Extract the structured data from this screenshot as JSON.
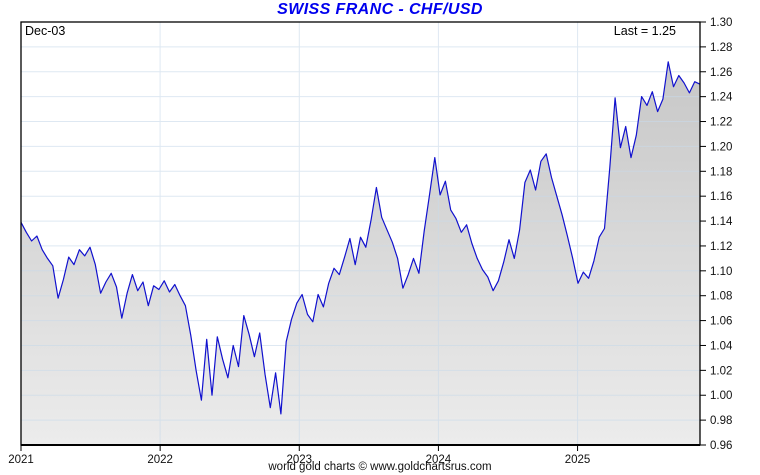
{
  "title": "SWISS FRANC - CHF/USD",
  "annotations": {
    "date_label": "Dec-03",
    "last_label": "Last = 1.25"
  },
  "footer": "world gold charts © www.goldchartsrus.com",
  "colors": {
    "title": "#0000EE",
    "line": "#1111CE",
    "area_top": "#c7c7c7",
    "area_bottom": "#ececec",
    "grid": "#c9daea",
    "axis": "#000000",
    "tick_text": "#111111"
  },
  "chart_data": {
    "type": "line",
    "title": "SWISS FRANC - CHF/USD",
    "series_name": "CHF/USD",
    "xlabel": "",
    "ylabel": "",
    "grid": true,
    "legend": "none",
    "ylim": [
      0.96,
      1.3
    ],
    "xlim": [
      2021.0,
      2025.88
    ],
    "x_start": 2021.0,
    "x_step": 0.038125,
    "x_ticks": [
      2021,
      2022,
      2023,
      2024,
      2025
    ],
    "y_ticks": [
      0.96,
      0.98,
      1.0,
      1.02,
      1.04,
      1.06,
      1.08,
      1.1,
      1.12,
      1.14,
      1.16,
      1.18,
      1.2,
      1.22,
      1.24,
      1.26,
      1.28,
      1.3
    ],
    "last_value": 1.25,
    "as_of": "Dec-03",
    "values": [
      1.139,
      1.131,
      1.124,
      1.128,
      1.117,
      1.11,
      1.104,
      1.078,
      1.093,
      1.111,
      1.105,
      1.117,
      1.112,
      1.119,
      1.105,
      1.082,
      1.091,
      1.098,
      1.087,
      1.062,
      1.082,
      1.097,
      1.084,
      1.091,
      1.072,
      1.088,
      1.085,
      1.092,
      1.083,
      1.089,
      1.08,
      1.072,
      1.048,
      1.02,
      0.996,
      1.045,
      1.0,
      1.047,
      1.029,
      1.014,
      1.04,
      1.023,
      1.064,
      1.049,
      1.031,
      1.05,
      1.017,
      0.99,
      1.018,
      0.985,
      1.043,
      1.061,
      1.074,
      1.081,
      1.065,
      1.059,
      1.081,
      1.071,
      1.09,
      1.102,
      1.097,
      1.111,
      1.126,
      1.105,
      1.127,
      1.119,
      1.141,
      1.167,
      1.143,
      1.133,
      1.123,
      1.11,
      1.086,
      1.097,
      1.11,
      1.098,
      1.132,
      1.161,
      1.191,
      1.161,
      1.172,
      1.149,
      1.142,
      1.131,
      1.137,
      1.122,
      1.11,
      1.101,
      1.095,
      1.084,
      1.092,
      1.107,
      1.125,
      1.11,
      1.133,
      1.171,
      1.181,
      1.165,
      1.188,
      1.194,
      1.175,
      1.16,
      1.145,
      1.128,
      1.11,
      1.09,
      1.099,
      1.094,
      1.108,
      1.127,
      1.134,
      1.183,
      1.239,
      1.199,
      1.216,
      1.191,
      1.209,
      1.24,
      1.233,
      1.244,
      1.228,
      1.238,
      1.268,
      1.248,
      1.257,
      1.251,
      1.243,
      1.252,
      1.25
    ]
  }
}
